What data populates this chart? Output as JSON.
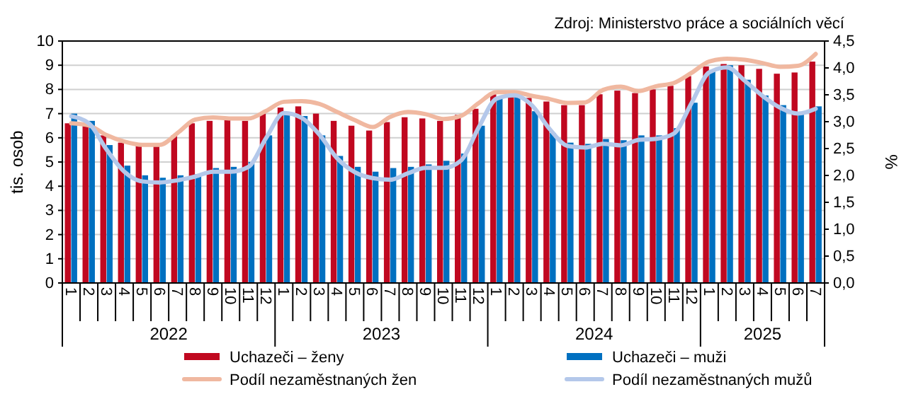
{
  "chart_data": {
    "type": "bar",
    "categories": [
      "1",
      "2",
      "3",
      "4",
      "5",
      "6",
      "7",
      "8",
      "9",
      "10",
      "11",
      "12",
      "1",
      "2",
      "3",
      "4",
      "5",
      "6",
      "7",
      "8",
      "9",
      "10",
      "11",
      "12",
      "1",
      "2",
      "3",
      "4",
      "5",
      "6",
      "7",
      "8",
      "9",
      "10",
      "11",
      "12",
      "1",
      "2",
      "3",
      "4",
      "5",
      "6",
      "7"
    ],
    "series": [
      {
        "name": "Uchazeči – ženy",
        "color": "#c00820",
        "values": [
          6.6,
          6.5,
          6.1,
          5.8,
          5.7,
          5.65,
          6.1,
          6.6,
          6.7,
          6.75,
          6.7,
          7.0,
          7.25,
          7.3,
          7.0,
          6.7,
          6.5,
          6.3,
          6.65,
          6.85,
          6.8,
          6.7,
          6.95,
          7.2,
          7.8,
          7.8,
          7.65,
          7.5,
          7.35,
          7.35,
          7.8,
          7.95,
          7.85,
          8.0,
          8.15,
          8.55,
          8.95,
          9.05,
          9.0,
          8.85,
          8.65,
          8.7,
          9.15
        ]
      },
      {
        "name": "Uchazeči – muži",
        "color": "#0070c0",
        "values": [
          7.0,
          6.7,
          5.7,
          4.85,
          4.45,
          4.35,
          4.45,
          4.5,
          4.75,
          4.8,
          5.0,
          6.1,
          6.95,
          6.9,
          6.1,
          5.25,
          4.8,
          4.6,
          4.75,
          4.8,
          4.9,
          5.05,
          5.35,
          6.5,
          7.65,
          7.75,
          7.1,
          6.2,
          5.8,
          5.75,
          5.95,
          5.9,
          6.1,
          6.1,
          6.4,
          7.45,
          8.8,
          9.0,
          8.4,
          7.75,
          7.35,
          7.0,
          7.3
        ]
      },
      {
        "name": "Podíl nezaměstnaných žen",
        "type": "line",
        "axis": "y2",
        "color": "#f0b8a0",
        "values": [
          2.97,
          2.93,
          2.75,
          2.63,
          2.57,
          2.57,
          2.79,
          3.04,
          3.08,
          3.06,
          3.06,
          3.2,
          3.37,
          3.38,
          3.33,
          3.18,
          3.03,
          2.9,
          3.09,
          3.18,
          3.14,
          3.05,
          3.11,
          3.35,
          3.55,
          3.55,
          3.48,
          3.42,
          3.35,
          3.36,
          3.59,
          3.65,
          3.57,
          3.66,
          3.72,
          3.91,
          4.12,
          4.17,
          4.15,
          4.09,
          4.02,
          4.04,
          4.26
        ]
      },
      {
        "name": "Podíl nezaměstnaných mužů",
        "type": "line",
        "axis": "y2",
        "color": "#b4c8ea",
        "values": [
          3.1,
          2.97,
          2.48,
          2.07,
          1.89,
          1.87,
          1.91,
          1.98,
          2.07,
          2.07,
          2.16,
          2.7,
          3.16,
          3.07,
          2.76,
          2.32,
          2.06,
          1.95,
          1.92,
          2.04,
          2.14,
          2.14,
          2.28,
          2.9,
          3.43,
          3.49,
          3.3,
          2.86,
          2.55,
          2.52,
          2.59,
          2.56,
          2.66,
          2.68,
          2.78,
          3.35,
          3.92,
          4.01,
          3.76,
          3.48,
          3.26,
          3.15,
          3.24
        ]
      }
    ],
    "ylabel": "tis. osob",
    "y2label": "%",
    "ylim": [
      0,
      10
    ],
    "yticks": [
      0,
      1,
      2,
      3,
      4,
      5,
      6,
      7,
      8,
      9,
      10
    ],
    "y2lim": [
      0,
      4.5
    ],
    "y2ticks": [
      {
        "value": 0,
        "label": "0,0"
      },
      {
        "value": 0.5,
        "label": "0,5"
      },
      {
        "value": 1,
        "label": "1,0"
      },
      {
        "value": 1.5,
        "label": "1,5"
      },
      {
        "value": 2,
        "label": "2,0"
      },
      {
        "value": 2.5,
        "label": "2,5"
      },
      {
        "value": 3,
        "label": "3,0"
      },
      {
        "value": 3.5,
        "label": "3,5"
      },
      {
        "value": 4,
        "label": "4,0"
      },
      {
        "value": 4.5,
        "label": "4,5"
      }
    ],
    "grid": "y",
    "legend": "bottom",
    "annotations": [
      "Zdroj: Ministerstvo práce a sociálních věcí",
      "2022",
      "2023",
      "2024",
      "2025"
    ]
  }
}
